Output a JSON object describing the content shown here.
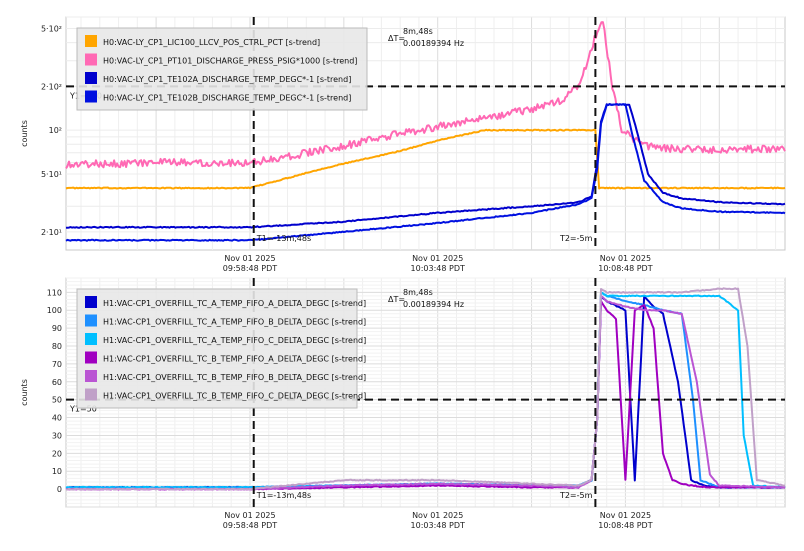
{
  "chart_data": [
    {
      "type": "line",
      "ylabel": "counts",
      "yscale": "log",
      "ylim": [
        15,
        600
      ],
      "yticks": [
        {
          "v": 20,
          "label": "2·10¹"
        },
        {
          "v": 50,
          "label": "5·10¹"
        },
        {
          "v": 100,
          "label": "10²"
        },
        {
          "v": 200,
          "label": "2·10²"
        },
        {
          "v": 500,
          "label": "5·10²"
        }
      ],
      "xlim": [
        -19.8,
        18.5
      ],
      "xticks": [
        {
          "t": -10,
          "date": "Nov 01 2025",
          "time": "09:58:48 PDT"
        },
        {
          "t": 0,
          "date": "Nov 01 2025",
          "time": "10:03:48 PDT"
        },
        {
          "t": 10,
          "date": "Nov 01 2025",
          "time": "10:08:48 PDT"
        }
      ],
      "cursor_x": {
        "t1": -9.8,
        "t2": 8.4,
        "t1_label": "T1=-13m,48s",
        "t2_label": "T2=-5m"
      },
      "delta": {
        "label": "ΔT=",
        "value": "8m,48s",
        "freq": "0.00189394 Hz"
      },
      "y_cursor": {
        "value": 200,
        "label": "Y1=200"
      },
      "legend_position": "top-left",
      "series": [
        {
          "name": "H0:VAC-LY_CP1_LIC100_LLCV_POS_CTRL_PCT [s-trend]",
          "color": "#ffa500",
          "x": [
            -19.8,
            -10,
            -6,
            -2,
            0,
            2.5,
            8.4,
            8.6,
            18.5
          ],
          "y": [
            40,
            40,
            55,
            72,
            85,
            100,
            100,
            40,
            40
          ]
        },
        {
          "name": "H0:VAC-LY_CP1_PT101_DISCHARGE_PRESS_PSIG*1000 [s-trend]",
          "color": "#ff69b4",
          "x": [
            -19.8,
            -15,
            -10,
            -8,
            -5,
            -2,
            2,
            5,
            6.5,
            7.5,
            8.2,
            8.5,
            8.8,
            9.3,
            9.8,
            10.5,
            11,
            12,
            13,
            15,
            18.5
          ],
          "y": [
            58,
            60,
            60,
            66,
            78,
            95,
            118,
            140,
            158,
            200,
            360,
            490,
            560,
            200,
            100,
            85,
            78,
            75,
            74,
            74,
            75
          ]
        },
        {
          "name": "H0:VAC-LY_CP1_TE102A_DISCHARGE_TEMP_DEGC*-1 [s-trend]",
          "color": "#0000cd",
          "x": [
            -19.8,
            -15,
            -10,
            -5,
            0,
            5,
            7.5,
            8.2,
            8.5,
            8.7,
            9.0,
            10.2,
            10.6,
            11.2,
            12,
            13,
            15,
            18.5
          ],
          "y": [
            21.5,
            21.5,
            21.5,
            23.5,
            27,
            30,
            32,
            35,
            60,
            115,
            150,
            150,
            100,
            50,
            37,
            34,
            32,
            31
          ]
        },
        {
          "name": "H0:VAC-LY_CP1_TE102B_DISCHARGE_TEMP_DEGC*-1 [s-trend]",
          "color": "#0010e0",
          "x": [
            -19.8,
            -15,
            -10,
            -5,
            0,
            5,
            7.5,
            8.2,
            8.5,
            8.7,
            9.0,
            10.0,
            10.4,
            11,
            12,
            13,
            15,
            18.5
          ],
          "y": [
            17.5,
            17.5,
            17.5,
            20,
            23,
            27,
            31,
            34,
            55,
            110,
            150,
            150,
            90,
            45,
            32,
            29,
            27.5,
            27
          ]
        }
      ]
    },
    {
      "type": "line",
      "ylabel": "counts",
      "ylim": [
        -10,
        118
      ],
      "yticks": [
        {
          "v": 0,
          "label": "0"
        },
        {
          "v": 10,
          "label": "10"
        },
        {
          "v": 20,
          "label": "20"
        },
        {
          "v": 30,
          "label": "30"
        },
        {
          "v": 40,
          "label": "40"
        },
        {
          "v": 50,
          "label": "50"
        },
        {
          "v": 60,
          "label": "60"
        },
        {
          "v": 70,
          "label": "70"
        },
        {
          "v": 80,
          "label": "80"
        },
        {
          "v": 90,
          "label": "90"
        },
        {
          "v": 100,
          "label": "100"
        },
        {
          "v": 110,
          "label": "110"
        }
      ],
      "xlim": [
        -19.8,
        18.5
      ],
      "xticks": [
        {
          "t": -10,
          "date": "Nov 01 2025",
          "time": "09:58:48 PDT"
        },
        {
          "t": 0,
          "date": "Nov 01 2025",
          "time": "10:03:48 PDT"
        },
        {
          "t": 10,
          "date": "Nov 01 2025",
          "time": "10:08:48 PDT"
        }
      ],
      "cursor_x": {
        "t1": -9.8,
        "t2": 8.4,
        "t1_label": "T1=-13m,48s",
        "t2_label": "T2=-5m"
      },
      "delta": {
        "label": "ΔT=",
        "value": "8m,48s",
        "freq": "0.00189394 Hz"
      },
      "y_cursor": {
        "value": 50,
        "label": "Y1=50"
      },
      "legend_position": "top-left",
      "series": [
        {
          "name": "H1:VAC-CP1_OVERFILL_TC_A_TEMP_FIFO_A_DELTA_DEGC [s-trend]",
          "color": "#0000cd",
          "x": [
            -19.8,
            -10,
            -5,
            0,
            5,
            7.5,
            8.2,
            8.5,
            8.7,
            9.0,
            10.0,
            10.5,
            11.0,
            11.5,
            12.0,
            12.8,
            13.5,
            14.2,
            15,
            18.5
          ],
          "y": [
            1,
            1,
            2,
            3,
            2,
            2,
            5,
            40,
            108,
            105,
            100,
            5,
            108,
            102,
            98,
            60,
            5,
            2,
            1,
            1
          ]
        },
        {
          "name": "H1:VAC-CP1_OVERFILL_TC_A_TEMP_FIFO_B_DELTA_DEGC [s-trend]",
          "color": "#1e90ff",
          "x": [
            -19.8,
            -10,
            -5,
            0,
            5,
            7.5,
            8.2,
            8.5,
            8.7,
            9.0,
            10.0,
            11.0,
            12.0,
            13.0,
            13.6,
            14.0,
            15,
            18.5
          ],
          "y": [
            1,
            1,
            2,
            3,
            2,
            2,
            5,
            40,
            110,
            108,
            105,
            103,
            100,
            98,
            50,
            5,
            1,
            1
          ]
        },
        {
          "name": "H1:VAC-CP1_OVERFILL_TC_A_TEMP_FIFO_C_DELTA_DEGC [s-trend]",
          "color": "#00bfff",
          "x": [
            -19.8,
            -10,
            -5,
            0,
            5,
            7.5,
            8.2,
            8.5,
            8.7,
            9.0,
            11.0,
            13.0,
            15.0,
            16.0,
            16.3,
            16.8,
            18.5
          ],
          "y": [
            1,
            1,
            2,
            3,
            2,
            2,
            5,
            40,
            110,
            108,
            108,
            108,
            108,
            100,
            30,
            2,
            1
          ]
        },
        {
          "name": "H1:VAC-CP1_OVERFILL_TC_B_TEMP_FIFO_A_DELTA_DEGC [s-trend]",
          "color": "#a000c0",
          "x": [
            -19.8,
            -10,
            -5,
            0,
            5,
            7.5,
            8.2,
            8.5,
            8.7,
            9.0,
            9.5,
            10.0,
            10.5,
            11.0,
            11.5,
            12.0,
            12.5,
            13.0,
            13.5,
            14.5,
            18.5
          ],
          "y": [
            0,
            0,
            1,
            2,
            1,
            1,
            5,
            40,
            105,
            100,
            95,
            5,
            100,
            103,
            90,
            20,
            5,
            3,
            2,
            1,
            1
          ]
        },
        {
          "name": "H1:VAC-CP1_OVERFILL_TC_B_TEMP_FIFO_B_DELTA_DEGC [s-trend]",
          "color": "#ba55d3",
          "x": [
            -19.8,
            -10,
            -5,
            0,
            5,
            7.5,
            8.2,
            8.5,
            8.7,
            9.0,
            10.0,
            11.0,
            12.0,
            13.0,
            13.8,
            14.5,
            15.0,
            18.5
          ],
          "y": [
            0,
            0,
            2,
            3,
            2,
            1,
            5,
            40,
            108,
            105,
            102,
            100,
            100,
            98,
            60,
            8,
            2,
            1
          ]
        },
        {
          "name": "H1:VAC-CP1_OVERFILL_TC_B_TEMP_FIFO_C_DELTA_DEGC [s-trend]",
          "color": "#c0a0c8",
          "x": [
            -19.8,
            -10,
            -5,
            0,
            5,
            7.5,
            8.2,
            8.5,
            8.7,
            9.0,
            11.0,
            13.0,
            15.0,
            16.0,
            16.5,
            17.0,
            18.5
          ],
          "y": [
            0,
            0,
            5,
            5,
            3,
            2,
            5,
            40,
            112,
            110,
            110,
            110,
            112,
            112,
            80,
            5,
            2
          ]
        }
      ]
    }
  ]
}
